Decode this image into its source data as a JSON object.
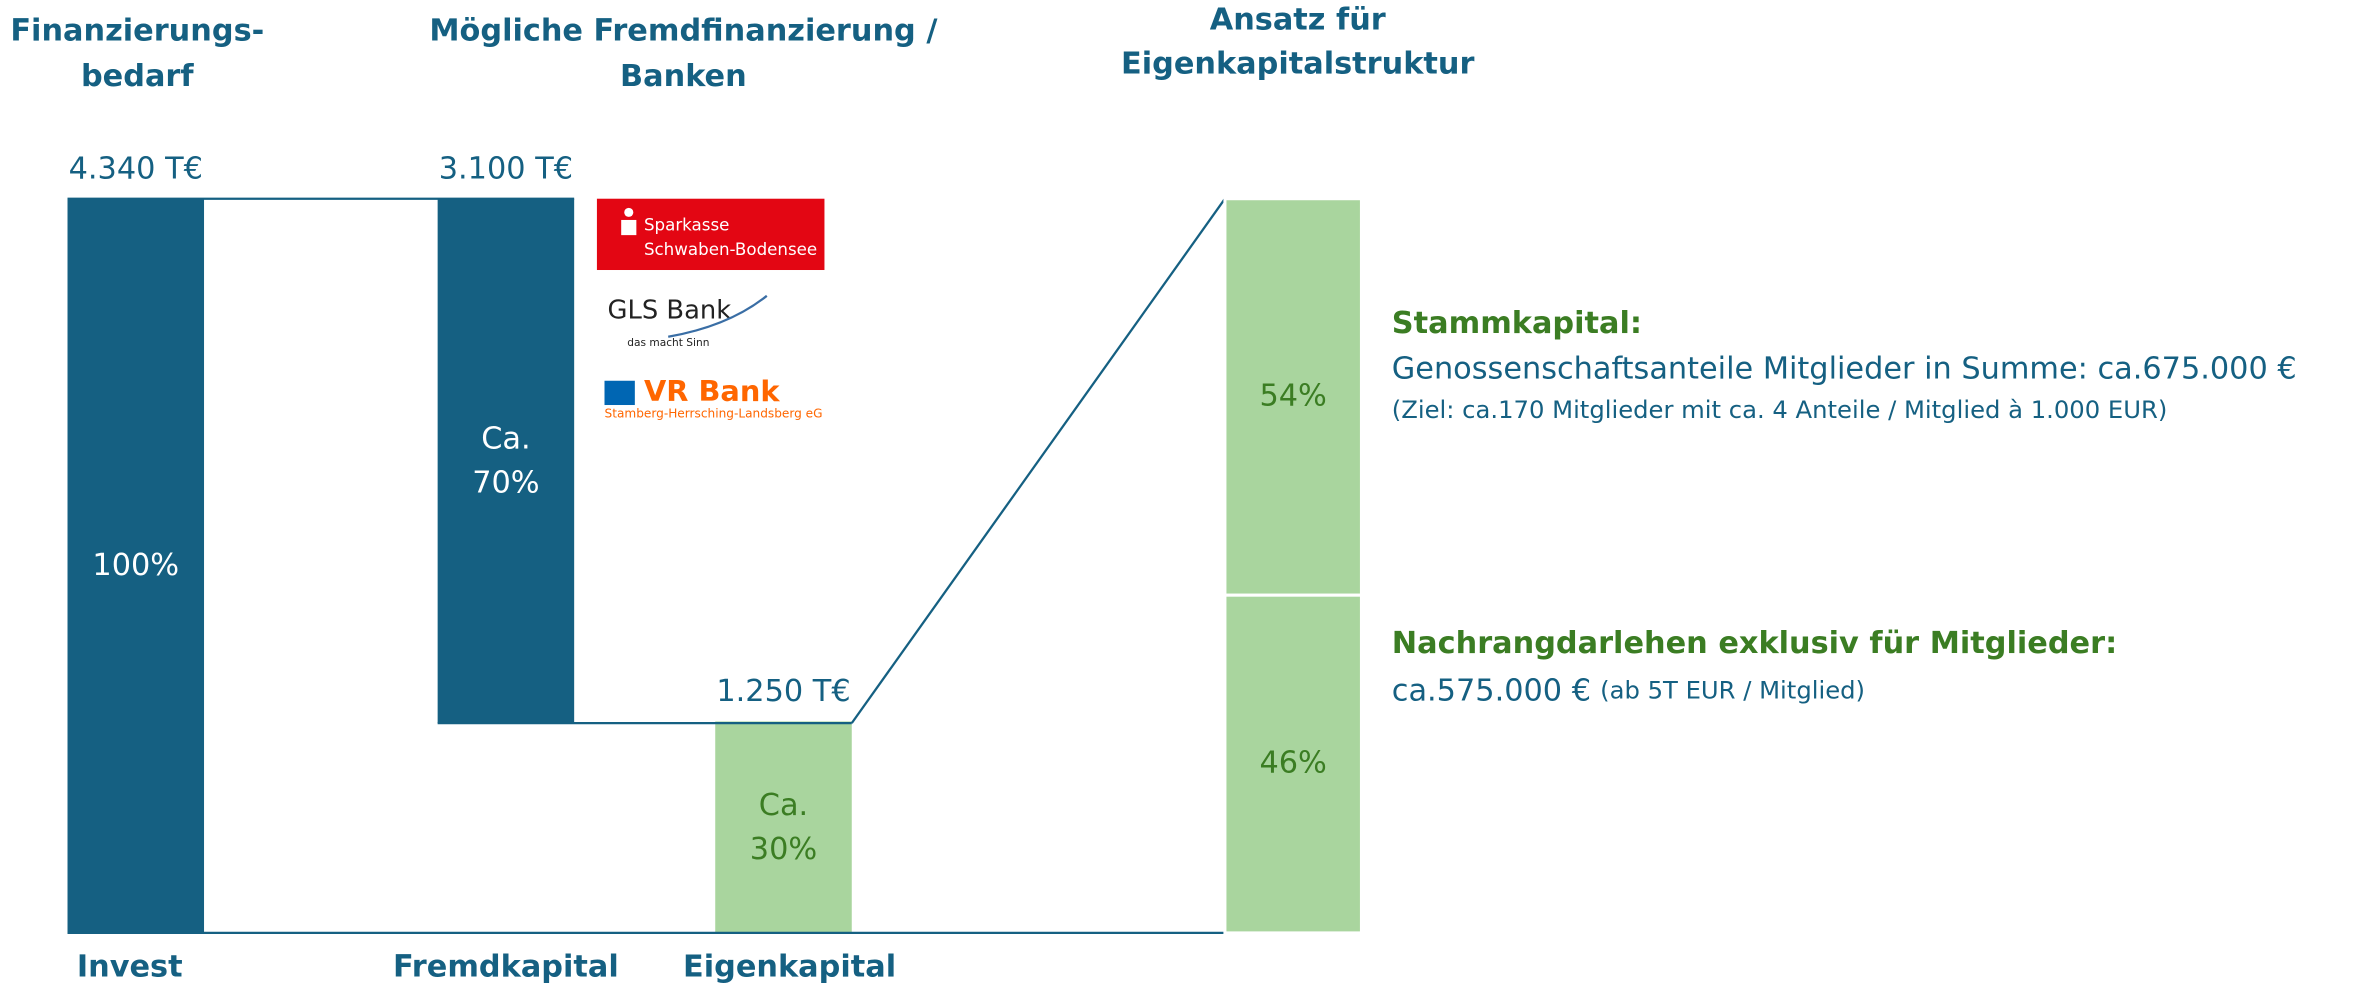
{
  "chart_data": {
    "type": "waterfall",
    "headers": [
      [
        "Finanzierungs-",
        "bedarf"
      ],
      [
        "Mögliche Fremdfinanzierung /",
        "Banken"
      ],
      [
        "Ansatz für",
        "Eigenkapitalstruktur"
      ]
    ],
    "categories": [
      "Invest",
      "Fremdkapital",
      "Eigenkapital"
    ],
    "values": [
      4340,
      3100,
      1250
    ],
    "value_labels": [
      "4.340 T€",
      "3.100 T€",
      "1.250 T€"
    ],
    "shares": [
      100,
      70,
      30
    ],
    "share_labels": [
      [
        "100%"
      ],
      [
        "Ca.",
        "70%"
      ],
      [
        "Ca.",
        "30%"
      ]
    ],
    "colors": [
      "#156082",
      "#156082",
      "#a9d59e"
    ],
    "banks": {
      "sparkasse": [
        "Sparkasse",
        "Schwaben-Bodensee"
      ],
      "gls": [
        "GLS Bank",
        "das macht Sinn"
      ],
      "vr": [
        "VR Bank",
        "Stamberg-Herrsching-Landsberg eG"
      ]
    },
    "breakdown": {
      "values": [
        54,
        46
      ],
      "value_labels": [
        "54%",
        "46%"
      ],
      "color": "#a9d59e",
      "items": [
        {
          "heading": "Stammkapital:",
          "text": "Genossenschaftsanteile Mitglieder in Summe: ca.675.000 €",
          "note": "(Ziel: ca.170 Mitglieder mit ca. 4 Anteile / Mitglied à 1.000 EUR)"
        },
        {
          "heading": "Nachrangdarlehen exklusiv für Mitglieder:",
          "text": "ca.575.000 €",
          "note": "(ab 5T EUR / Mitglied)"
        }
      ]
    }
  }
}
